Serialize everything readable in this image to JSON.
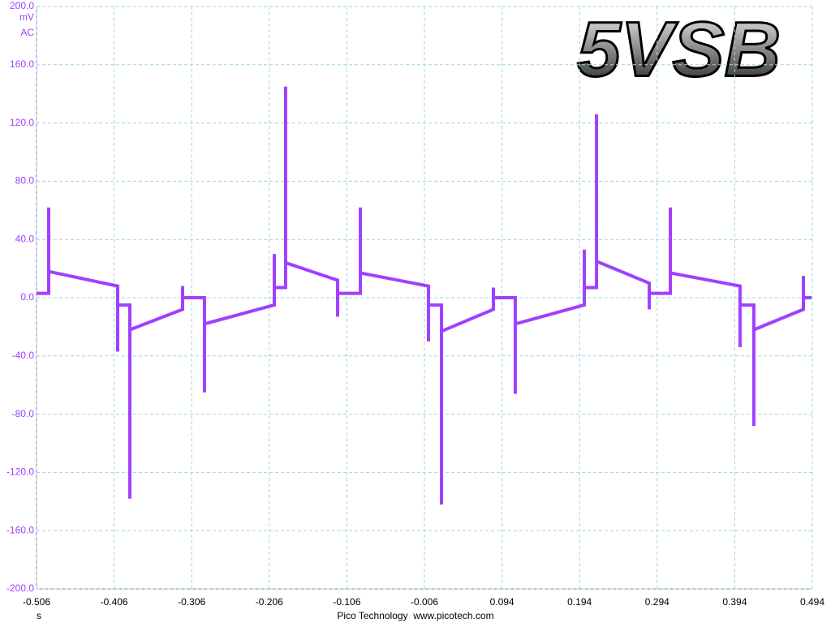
{
  "chart_data": {
    "type": "line",
    "title": "5VSB",
    "y_unit": "mV",
    "y_coupling": "AC",
    "x_label": "s",
    "footer": "Pico Technology  www.picotech.com",
    "color": "#a040ff",
    "grid": true,
    "xlim": [
      -0.506,
      0.494
    ],
    "ylim": [
      -200,
      200
    ],
    "xticks": [
      -0.506,
      -0.406,
      -0.306,
      -0.206,
      -0.106,
      -0.006,
      0.094,
      0.194,
      0.294,
      0.394,
      0.494
    ],
    "yticks": [
      {
        "value": 200,
        "label": "200.0"
      },
      {
        "value": 160,
        "label": "160.0"
      },
      {
        "value": 120,
        "label": "120.0"
      },
      {
        "value": 80,
        "label": "80.0"
      },
      {
        "value": 40,
        "label": "40.0"
      },
      {
        "value": 0,
        "label": "0.0"
      },
      {
        "value": -40,
        "label": "-40.0"
      },
      {
        "value": -80,
        "label": "-80.0"
      },
      {
        "value": -120,
        "label": "-120.0"
      },
      {
        "value": -160,
        "label": "-160.0"
      },
      {
        "value": -200,
        "label": "-200.0"
      }
    ],
    "x": [
      -0.506,
      -0.4903,
      -0.4903,
      -0.4903,
      -0.4014,
      -0.4014,
      -0.4014,
      -0.3857,
      -0.3857,
      -0.3857,
      -0.3177,
      -0.3177,
      -0.3177,
      -0.2895,
      -0.2895,
      -0.2895,
      -0.1995,
      -0.1995,
      -0.1995,
      -0.1849,
      -0.1849,
      -0.1849,
      -0.1179,
      -0.1179,
      -0.1179,
      -0.0886,
      -0.0886,
      -0.0886,
      -0.0008,
      -0.0008,
      -0.0008,
      0.016,
      0.016,
      0.016,
      0.0829,
      0.0829,
      0.0829,
      0.1111,
      0.1111,
      0.1111,
      0.2001,
      0.2001,
      0.2001,
      0.2158,
      0.2158,
      0.2158,
      0.2838,
      0.2838,
      0.2838,
      0.311,
      0.311,
      0.311,
      0.4008,
      0.4008,
      0.4008,
      0.4186,
      0.4186,
      0.4186,
      0.4825,
      0.4825,
      0.4825,
      0.493
    ],
    "values": [
      3,
      3,
      62,
      18,
      8,
      -37,
      -5,
      -5,
      -138,
      -22,
      -8,
      8,
      0,
      0,
      -65,
      -18,
      -5,
      30,
      7,
      7,
      145,
      24,
      12,
      -13,
      3,
      3,
      62,
      17,
      8,
      -30,
      -5,
      -5,
      -142,
      -23,
      -8,
      7,
      0,
      0,
      -66,
      -18,
      -5,
      33,
      7,
      7,
      126,
      25,
      10,
      -8,
      3,
      3,
      62,
      17,
      8,
      -34,
      -5,
      -5,
      -88,
      -22,
      -8,
      15,
      0,
      0
    ]
  }
}
